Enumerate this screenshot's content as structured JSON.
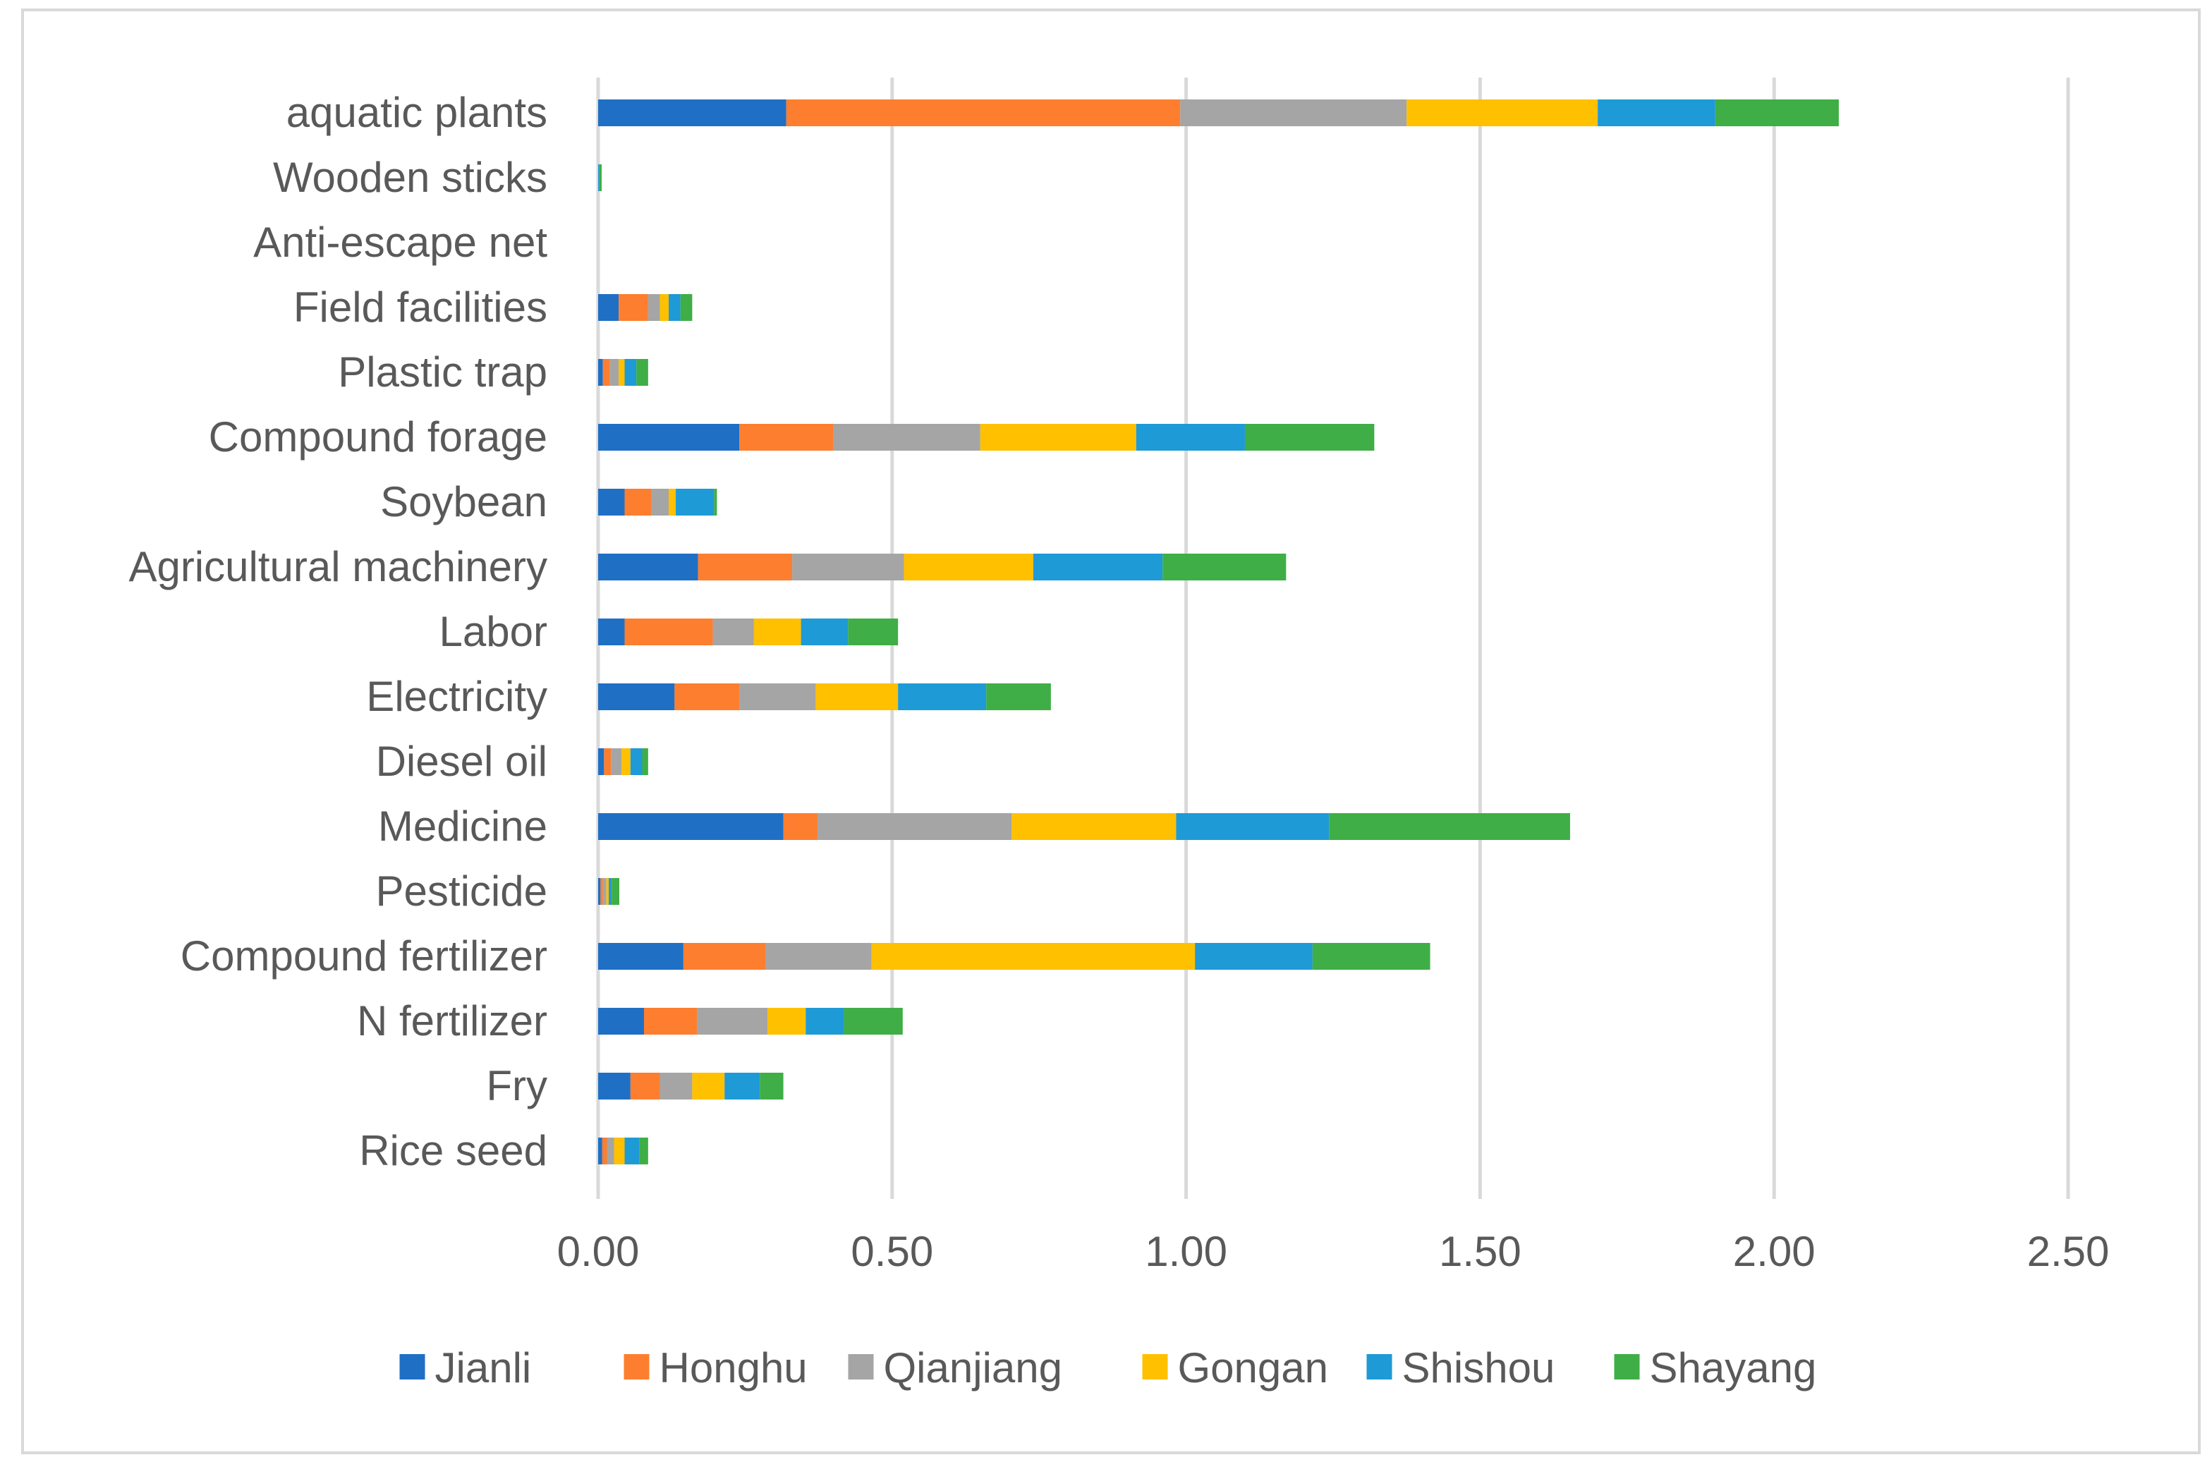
{
  "chart_data": {
    "type": "bar",
    "orientation": "horizontal",
    "stacked": true,
    "title": "",
    "xlabel": "",
    "ylabel": "",
    "xlim": [
      0,
      2.5
    ],
    "xticks": [
      "0.00",
      "0.50",
      "1.00",
      "1.50",
      "2.00",
      "2.50"
    ],
    "grid": true,
    "legend_position": "bottom",
    "categories": [
      "aquatic plants",
      "Wooden sticks",
      "Anti-escape net",
      "Field facilities",
      "Plastic trap",
      "Compound forage",
      "Soybean",
      "Agricultural machinery",
      "Labor",
      "Electricity",
      "Diesel oil",
      "Medicine",
      "Pesticide",
      "Compound fertilizer",
      "N fertilizer",
      "Fry",
      "Rice seed"
    ],
    "series": [
      {
        "name": "Jianli",
        "color": "#1f6fc5",
        "values": [
          0.32,
          0.0,
          0.0,
          0.035,
          0.008,
          0.24,
          0.045,
          0.17,
          0.045,
          0.13,
          0.01,
          0.315,
          0.004,
          0.145,
          0.078,
          0.055,
          0.007
        ]
      },
      {
        "name": "Honghu",
        "color": "#fd7e2f",
        "values": [
          0.67,
          0.0,
          0.0,
          0.05,
          0.012,
          0.16,
          0.045,
          0.16,
          0.15,
          0.11,
          0.012,
          0.058,
          0.004,
          0.14,
          0.09,
          0.05,
          0.008
        ]
      },
      {
        "name": "Qianjiang",
        "color": "#a5a5a5",
        "values": [
          0.385,
          0.0,
          0.0,
          0.02,
          0.015,
          0.25,
          0.03,
          0.19,
          0.07,
          0.13,
          0.018,
          0.33,
          0.006,
          0.18,
          0.12,
          0.055,
          0.012
        ]
      },
      {
        "name": "Gongan",
        "color": "#ffc000",
        "values": [
          0.325,
          0.0,
          0.0,
          0.015,
          0.01,
          0.265,
          0.012,
          0.22,
          0.08,
          0.14,
          0.015,
          0.28,
          0.004,
          0.55,
          0.065,
          0.055,
          0.018
        ]
      },
      {
        "name": "Shishou",
        "color": "#1e9ad6",
        "values": [
          0.2,
          0.002,
          0.0,
          0.02,
          0.02,
          0.185,
          0.065,
          0.22,
          0.08,
          0.15,
          0.02,
          0.26,
          0.005,
          0.2,
          0.065,
          0.06,
          0.025
        ]
      },
      {
        "name": "Shayang",
        "color": "#3fae46",
        "values": [
          0.21,
          0.004,
          0.0,
          0.02,
          0.02,
          0.22,
          0.005,
          0.21,
          0.085,
          0.11,
          0.01,
          0.41,
          0.013,
          0.2,
          0.1,
          0.04,
          0.015
        ]
      }
    ]
  }
}
